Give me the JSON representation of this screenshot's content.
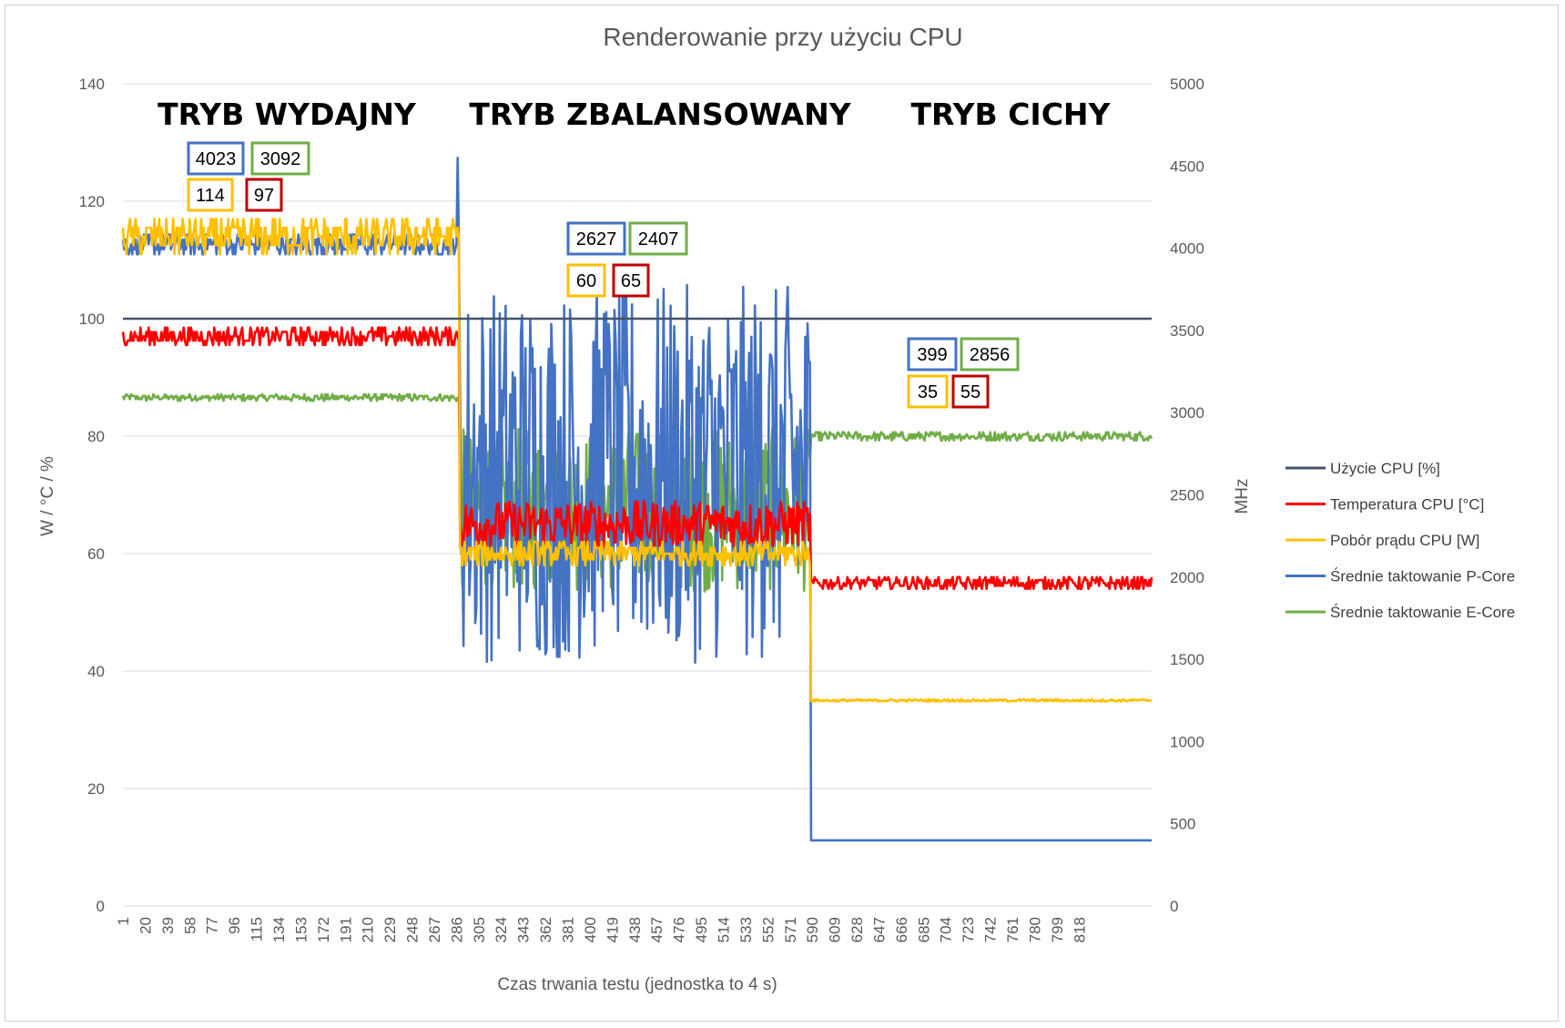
{
  "chart_data": {
    "type": "line",
    "title": "Renderowanie przy użyciu CPU",
    "xlabel": "Czas trwania testu (jednostka to 4 s)",
    "ylabel_left": "W / °C / %",
    "ylabel_right": "MHz",
    "ylim_left": [
      0,
      140
    ],
    "ylim_right": [
      0,
      5000
    ],
    "yticks_left": [
      0,
      20,
      40,
      60,
      80,
      100,
      120,
      140
    ],
    "yticks_right": [
      0,
      500,
      1000,
      1500,
      2000,
      2500,
      3000,
      3500,
      4000,
      4500,
      5000
    ],
    "x_range": [
      1,
      880
    ],
    "xtick_labels": [
      "1",
      "20",
      "39",
      "58",
      "77",
      "96",
      "115",
      "134",
      "153",
      "172",
      "191",
      "210",
      "229",
      "248",
      "267",
      "286",
      "305",
      "324",
      "343",
      "362",
      "381",
      "400",
      "419",
      "438",
      "457",
      "476",
      "495",
      "514",
      "533",
      "552",
      "571",
      "590",
      "609",
      "628",
      "647",
      "666",
      "685",
      "704",
      "723",
      "742",
      "761",
      "780",
      "799",
      "818"
    ],
    "grid": "horizontal",
    "legend_position": "right",
    "mode_labels": [
      "TRYB WYDAJNY",
      "TRYB ZBALANSOWANY",
      "TRYB CICHY"
    ],
    "mode_boundaries_x": [
      288,
      592
    ],
    "series": [
      {
        "name": "Użycie CPU [%]",
        "color": "#44546a",
        "axis": "left",
        "segments": [
          {
            "x_from": 1,
            "x_to": 880,
            "mean": 100,
            "jitter": 0
          }
        ]
      },
      {
        "name": "Temperatura CPU [°C]",
        "color": "#ff0000",
        "axis": "left",
        "segments": [
          {
            "x_from": 1,
            "x_to": 288,
            "mean": 97,
            "jitter": 1.5
          },
          {
            "x_from": 289,
            "x_to": 588,
            "mean": 65,
            "jitter": 4
          },
          {
            "x_from": 589,
            "x_to": 880,
            "mean": 55,
            "jitter": 1
          }
        ]
      },
      {
        "name": "Pobór prądu CPU [W]",
        "color": "#ffc000",
        "axis": "left",
        "segments": [
          {
            "x_from": 1,
            "x_to": 288,
            "mean": 114,
            "jitter": 3
          },
          {
            "x_from": 289,
            "x_to": 588,
            "mean": 60,
            "jitter": 2
          },
          {
            "x_from": 589,
            "x_to": 880,
            "mean": 35,
            "jitter": 0.2
          }
        ]
      },
      {
        "name": "Średnie taktowanie P-Core",
        "color": "#4472c4",
        "axis": "right",
        "segments": [
          {
            "x_from": 1,
            "x_to": 288,
            "mean": 4023,
            "jitter": 60
          },
          {
            "x_from": 289,
            "x_to": 588,
            "mean": 2627,
            "jitter": 1150
          },
          {
            "x_from": 589,
            "x_to": 880,
            "mean": 399,
            "jitter": 0
          }
        ],
        "spikes": [
          {
            "x": 287,
            "y": 4550
          },
          {
            "x": 412,
            "y": 3600
          },
          {
            "x": 546,
            "y": 3550
          }
        ]
      },
      {
        "name": "Średnie taktowanie E-Core",
        "color": "#70ad47",
        "axis": "right",
        "segments": [
          {
            "x_from": 1,
            "x_to": 288,
            "mean": 3092,
            "jitter": 20
          },
          {
            "x_from": 289,
            "x_to": 588,
            "mean": 2407,
            "jitter": 500
          },
          {
            "x_from": 589,
            "x_to": 880,
            "mean": 2856,
            "jitter": 25
          }
        ]
      }
    ],
    "annotations": [
      {
        "text": "4023",
        "color": "#4472c4"
      },
      {
        "text": "3092",
        "color": "#70ad47"
      },
      {
        "text": "114",
        "color": "#ffc000"
      },
      {
        "text": "97",
        "color": "#c00000"
      },
      {
        "text": "2627",
        "color": "#4472c4"
      },
      {
        "text": "2407",
        "color": "#70ad47"
      },
      {
        "text": "60",
        "color": "#ffc000"
      },
      {
        "text": "65",
        "color": "#c00000"
      },
      {
        "text": "399",
        "color": "#4472c4"
      },
      {
        "text": "2856",
        "color": "#70ad47"
      },
      {
        "text": "35",
        "color": "#ffc000"
      },
      {
        "text": "55",
        "color": "#c00000"
      }
    ]
  }
}
